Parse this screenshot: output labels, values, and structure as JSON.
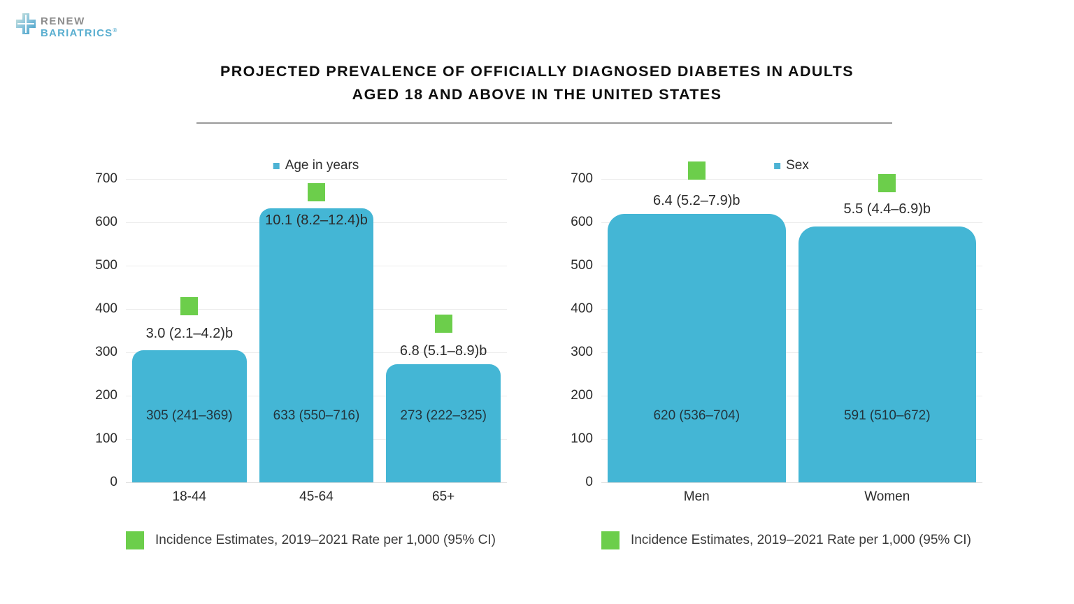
{
  "logo": {
    "line1": "RENEW",
    "line2": "BARIATRICS",
    "registered": "®"
  },
  "title": {
    "line1": "PROJECTED PREVALENCE OF OFFICIALLY DIAGNOSED DIABETES IN ADULTS",
    "line2": "AGED 18 AND ABOVE IN THE UNITED STATES"
  },
  "chart_data": [
    {
      "type": "bar",
      "legend": "Age in years",
      "categories": [
        "18-44",
        "45-64",
        "65+"
      ],
      "values": [
        305,
        633,
        273
      ],
      "bar_labels": [
        "305 (241–369)",
        "633 (550–716)",
        "273 (222–325)"
      ],
      "incidence_labels": [
        "3.0 (2.1–4.2)b",
        "10.1 (8.2–12.4)b",
        "6.8 (5.1–8.9)b"
      ],
      "marker_values": [
        406,
        669,
        366
      ],
      "incidence_label_values": [
        343,
        605,
        303
      ],
      "bar_label_value": 153,
      "footer_legend": "Incidence Estimates, 2019–2021 Rate per 1,000 (95% CI)",
      "ylabel": "",
      "xlabel": "",
      "ylim": [
        0,
        700
      ],
      "yticks": [
        0,
        100,
        200,
        300,
        400,
        500,
        600,
        700
      ],
      "grid": true,
      "legend_position": "top-center"
    },
    {
      "type": "bar",
      "legend": "Sex",
      "categories": [
        "Men",
        "Women"
      ],
      "values": [
        620,
        591
      ],
      "bar_labels": [
        "620 (536–704)",
        "591 (510–672)"
      ],
      "incidence_labels": [
        "6.4 (5.2–7.9)b",
        "5.5 (4.4–6.9)b"
      ],
      "marker_values": [
        719,
        690
      ],
      "incidence_label_values": [
        650,
        631
      ],
      "bar_label_value": 153,
      "footer_legend": "Incidence Estimates, 2019–2021 Rate per 1,000 (95% CI)",
      "ylabel": "",
      "xlabel": "",
      "ylim": [
        0,
        700
      ],
      "yticks": [
        0,
        100,
        200,
        300,
        400,
        500,
        600,
        700
      ],
      "grid": true,
      "legend_position": "top-center"
    }
  ],
  "colors": {
    "bar": "#44B6D5",
    "marker": "#6CCE4B",
    "legend_bullet": "#4DB3D4",
    "grid": "#ECECEC",
    "logo_gray": "#8C8C8C",
    "logo_blue": "#5BAFD0"
  }
}
